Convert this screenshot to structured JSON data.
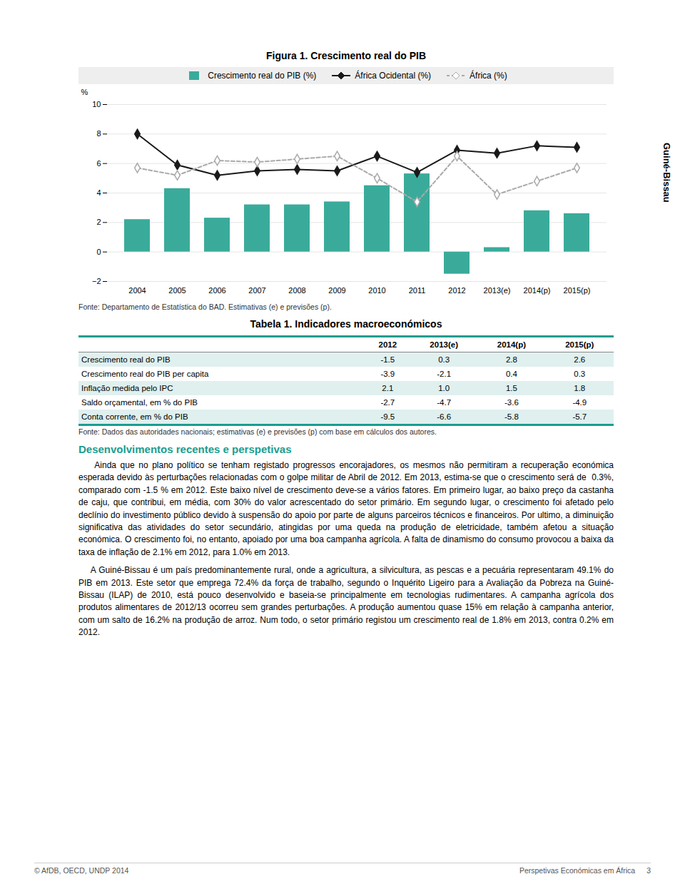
{
  "chart_data": {
    "type": "bar",
    "title": "Figura 1. Crescimento real do PIB",
    "categories": [
      "2004",
      "2005",
      "2006",
      "2007",
      "2008",
      "2009",
      "2010",
      "2011",
      "2012",
      "2013(e)",
      "2014(p)",
      "2015(p)"
    ],
    "series": [
      {
        "name": "Crescimento real do PIB (%)",
        "type": "bar",
        "color": "#3aab9b",
        "values": [
          2.2,
          4.3,
          2.3,
          3.2,
          3.2,
          3.4,
          4.5,
          5.3,
          -1.5,
          0.3,
          2.8,
          2.6
        ]
      },
      {
        "name": "África Ocidental (%)",
        "type": "line",
        "color": "#1a1a1a",
        "marker": "diamond",
        "line_style": "solid",
        "values": [
          8.0,
          5.9,
          5.2,
          5.5,
          5.6,
          5.5,
          6.5,
          5.4,
          6.9,
          6.7,
          7.2,
          7.1
        ]
      },
      {
        "name": "África (%)",
        "type": "line",
        "color": "#aaaaaa",
        "marker": "diamond",
        "line_style": "dashed",
        "values": [
          5.7,
          5.2,
          6.2,
          6.1,
          6.3,
          6.5,
          5.0,
          3.4,
          6.5,
          3.9,
          4.8,
          5.7
        ]
      }
    ],
    "ylabel": "%",
    "ylim": [
      -2,
      10
    ],
    "yticks": [
      -2,
      0,
      2,
      4,
      6,
      8,
      10
    ],
    "grid": true,
    "legend": "top",
    "annotations": [
      "Fonte: Departamento de Estatística do BAD. Estimativas (e) e previsões (p)."
    ]
  },
  "table": {
    "title": "Tabela 1. Indicadores macroeconómicos",
    "columns": [
      "2012",
      "2013(e)",
      "2014(p)",
      "2015(p)"
    ],
    "rows": [
      [
        "Crescimento real do PIB",
        "-1.5",
        "0.3",
        "2.8",
        "2.6"
      ],
      [
        "Crescimento real do PIB per capita",
        "-3.9",
        "-2.1",
        "0.4",
        "0.3"
      ],
      [
        "Inflação medida pelo IPC",
        "2.1",
        "1.0",
        "1.5",
        "1.8"
      ],
      [
        "Saldo orçamental, em % do PIB",
        "-2.7",
        "-4.7",
        "-3.6",
        "-4.9"
      ],
      [
        "Conta corrente, em % do PIB",
        "-9.5",
        "-6.6",
        "-5.8",
        "-5.7"
      ]
    ],
    "source": "Fonte: Dados das autoridades nacionais; estimativas (e) e previsões (p) com base em cálculos dos autores."
  },
  "section_title": "Desenvolvimentos recentes e perspetivas",
  "paragraphs": [
    "    Ainda que no plano político se tenham registado progressos encorajadores, os mesmos não permitiram a recuperação económica esperada devido às perturbações relacionadas com o golpe militar de Abril de 2012. Em 2013, estima-se que o crescimento será de  0.3%, comparado com -1.5 % em 2012. Este baixo nível de crescimento deve-se a vários fatores. Em primeiro lugar, ao baixo preço da castanha de caju, que contribui, em média, com 30% do valor acrescentado do setor primário. Em segundo lugar, o crescimento foi afetado pelo declínio do investimento público devido à suspensão do apoio por parte de alguns parceiros técnicos e financeiros. Por ultimo, a diminuição significativa das atividades do setor secundário, atingidas por uma queda na produção de eletricidade, também afetou a situação económica. O crescimento foi, no entanto, apoiado por uma boa campanha agrícola. A falta de dinamismo do consumo provocou a baixa da taxa de inflação de 2.1% em 2012, para 1.0% em 2013.",
    "    A Guiné-Bissau é um país predominantemente rural, onde a agricultura, a silvicultura, as pescas e a pecuária representaram 49.1% do PIB em 2013. Este setor que emprega 72.4% da força de trabalho, segundo o Inquérito Ligeiro para a Avaliação da Pobreza na Guiné-Bissau (ILAP) de 2010, está pouco desenvolvido e baseia-se principalmente em tecnologias rudimentares. A campanha agrícola dos produtos alimentares de 2012/13 ocorreu sem grandes perturbações. A produção aumentou quase 15% em relação à campanha anterior, com um salto de 16.2% na produção de arroz. Num todo, o setor primário registou um crescimento real de 1.8% em 2013, contra 0.2% em 2012."
  ],
  "sidebar": "Guiné-Bissau",
  "footer": [
    "© AfDB, OECD, UNDP 2014",
    "Perspetivas Económicas em África",
    "3"
  ]
}
